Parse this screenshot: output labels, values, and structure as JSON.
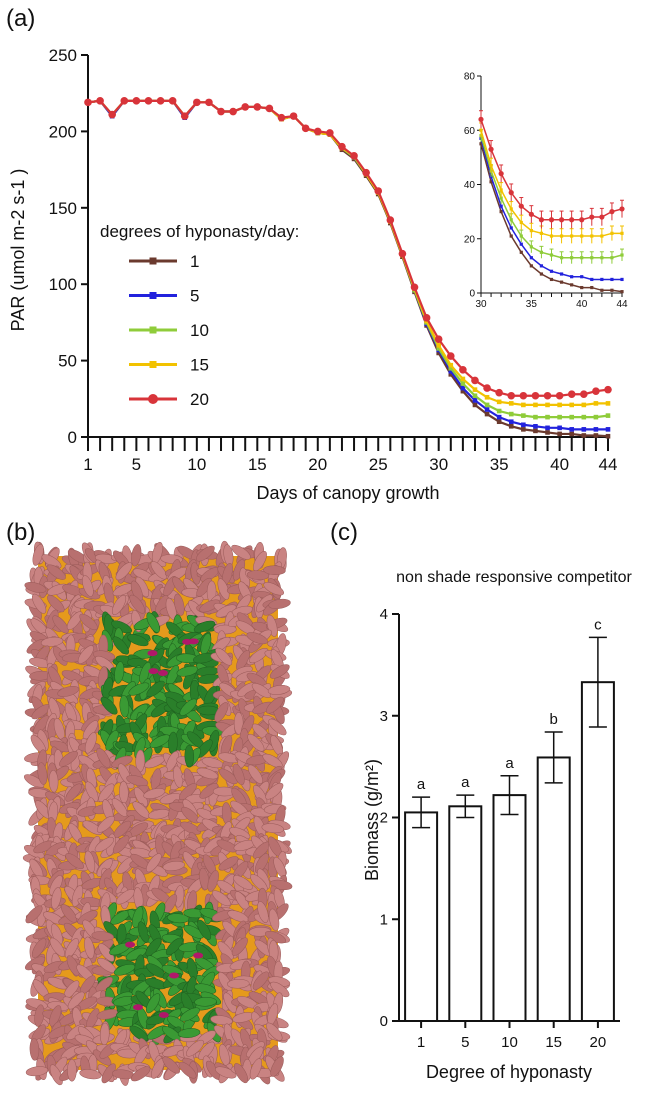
{
  "panels": {
    "a_label": "(a)",
    "b_label": "(b)",
    "c_label": "(c)"
  },
  "colors": {
    "s1": "#6b3a2e",
    "s5": "#2222dd",
    "s10": "#8fcc3a",
    "s15": "#f2c200",
    "s20": "#d8343a",
    "canopy_leaf": "#c98382",
    "canopy_center": "#2e8b2e",
    "canopy_bg": "#e59a1c",
    "canopy_magenta": "#b0186a"
  },
  "legend": {
    "title": "degrees of hyponasty/day:",
    "items": [
      "1",
      "5",
      "10",
      "15",
      "20"
    ]
  },
  "inset": {
    "yticks": [
      "0",
      "20",
      "40",
      "60",
      "80"
    ],
    "xticks": [
      "30",
      "35",
      "40",
      "44"
    ]
  },
  "images": {
    "top_canopy": "top-view canopy render",
    "bottom_canopy": "top-view canopy render"
  },
  "chart_data": [
    {
      "type": "line",
      "xlabel": "Days of canopy growth",
      "ylabel": "PAR (umol m-2 s-1 )",
      "xlim": [
        1,
        44
      ],
      "ylim": [
        0,
        250
      ],
      "xticks": [
        "1",
        "5",
        "10",
        "15",
        "20",
        "25",
        "30",
        "35",
        "40",
        "44"
      ],
      "yticks": [
        "0",
        "50",
        "100",
        "150",
        "200",
        "250"
      ],
      "x": [
        1,
        2,
        3,
        4,
        5,
        6,
        7,
        8,
        9,
        10,
        11,
        12,
        13,
        14,
        15,
        16,
        17,
        18,
        19,
        20,
        21,
        22,
        23,
        24,
        25,
        26,
        27,
        28,
        29,
        30,
        31,
        32,
        33,
        34,
        35,
        36,
        37,
        38,
        39,
        40,
        41,
        42,
        43,
        44
      ],
      "series": [
        {
          "name": "1",
          "values": [
            219,
            220,
            210,
            220,
            220,
            220,
            220,
            220,
            209,
            219,
            219,
            213,
            213,
            216,
            216,
            215,
            208,
            210,
            202,
            199,
            198,
            188,
            182,
            171,
            159,
            140,
            118,
            95,
            73,
            55,
            41,
            30,
            21,
            15,
            10,
            7,
            5,
            4,
            3,
            2,
            2,
            1,
            1,
            0.5
          ]
        },
        {
          "name": "5",
          "values": [
            219,
            220,
            210,
            220,
            220,
            220,
            220,
            220,
            209,
            219,
            219,
            213,
            213,
            216,
            216,
            215,
            208,
            210,
            202,
            199,
            198,
            189,
            183,
            172,
            160,
            141,
            119,
            96,
            74,
            57,
            43,
            32,
            24,
            18,
            13,
            10,
            8,
            7,
            6,
            6,
            5,
            5,
            5,
            5
          ]
        },
        {
          "name": "10",
          "values": [
            219,
            220,
            211,
            220,
            220,
            220,
            220,
            220,
            210,
            219,
            219,
            213,
            213,
            216,
            216,
            215,
            208,
            210,
            202,
            199,
            198,
            189,
            183,
            172,
            160,
            141,
            119,
            96,
            75,
            58,
            45,
            35,
            27,
            21,
            17,
            15,
            14,
            13,
            13,
            13,
            13,
            13,
            13,
            14
          ]
        },
        {
          "name": "15",
          "values": [
            219,
            220,
            211,
            220,
            220,
            220,
            220,
            220,
            210,
            219,
            219,
            213,
            213,
            216,
            216,
            215,
            208,
            210,
            202,
            199,
            198,
            189,
            184,
            172,
            160,
            141,
            119,
            97,
            76,
            60,
            47,
            38,
            31,
            26,
            23,
            22,
            21,
            21,
            21,
            21,
            21,
            21,
            22,
            22
          ]
        },
        {
          "name": "20",
          "values": [
            219,
            220,
            211,
            220,
            220,
            220,
            220,
            220,
            210,
            219,
            219,
            213,
            213,
            216,
            216,
            215,
            209,
            210,
            202,
            200,
            199,
            190,
            184,
            173,
            161,
            142,
            120,
            98,
            78,
            64,
            53,
            44,
            37,
            32,
            29,
            27,
            27,
            27,
            27,
            27,
            28,
            28,
            30,
            31
          ]
        }
      ],
      "inset": {
        "xlim": [
          30,
          44
        ],
        "ylim": [
          0,
          80
        ]
      }
    },
    {
      "type": "bar",
      "title": "non shade responsive competitor",
      "xlabel": "Degree of hyponasty",
      "ylabel": "Biomass (g/m²)",
      "categories": [
        "1",
        "5",
        "10",
        "15",
        "20"
      ],
      "values": [
        2.05,
        2.11,
        2.22,
        2.59,
        3.33
      ],
      "errors": [
        0.15,
        0.11,
        0.19,
        0.25,
        0.44
      ],
      "letters": [
        "a",
        "a",
        "a",
        "b",
        "c"
      ],
      "ylim": [
        0,
        4
      ],
      "yticks": [
        "0",
        "1",
        "2",
        "3",
        "4"
      ]
    }
  ]
}
